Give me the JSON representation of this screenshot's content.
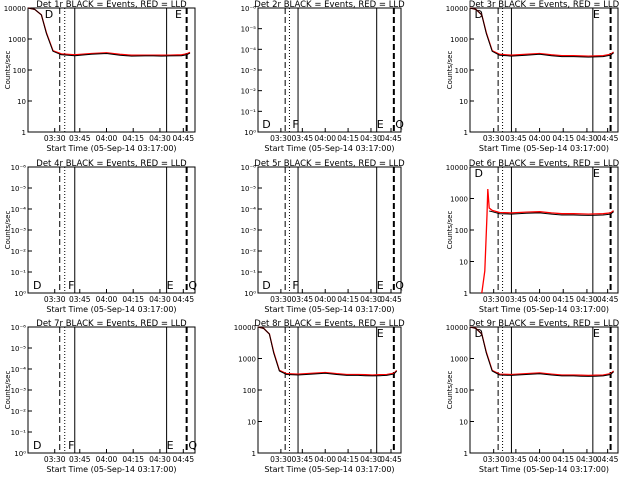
{
  "colors": {
    "events": "#000000",
    "lld": "#ff0000",
    "background": "#ffffff"
  },
  "chart_data": [
    {
      "type": "line",
      "title": "Det 1r BLACK = Events, RED = LLD",
      "xlabel": "Start Time (05-Sep-14 03:17:00)",
      "ylabel": "Counts/sec",
      "xticks": [
        "03:30",
        "03:45",
        "04:00",
        "04:15",
        "04:30",
        "04:45"
      ],
      "yscale": "log",
      "ylim": [
        1,
        10000
      ],
      "yticks": [
        "1",
        "10",
        "100",
        "1000",
        "10000"
      ],
      "markers": [
        {
          "x": 0.1,
          "label": "D"
        },
        {
          "x": 0.88,
          "label": "E"
        }
      ],
      "series": [
        {
          "name": "Events",
          "points": [
            [
              0,
              10000
            ],
            [
              0.04,
              9000
            ],
            [
              0.08,
              6000
            ],
            [
              0.11,
              1500
            ],
            [
              0.15,
              400
            ],
            [
              0.2,
              310
            ],
            [
              0.28,
              290
            ],
            [
              0.38,
              320
            ],
            [
              0.47,
              340
            ],
            [
              0.55,
              300
            ],
            [
              0.62,
              280
            ],
            [
              0.7,
              285
            ],
            [
              0.75,
              285
            ],
            [
              0.8,
              280
            ],
            [
              0.85,
              285
            ],
            [
              0.92,
              290
            ],
            [
              0.95,
              310
            ],
            [
              0.97,
              350
            ]
          ]
        },
        {
          "name": "LLD",
          "points": [
            [
              0,
              10000
            ],
            [
              0.04,
              9000
            ],
            [
              0.08,
              6000
            ],
            [
              0.11,
              1600
            ],
            [
              0.15,
              420
            ],
            [
              0.2,
              330
            ],
            [
              0.28,
              310
            ],
            [
              0.38,
              340
            ],
            [
              0.47,
              360
            ],
            [
              0.55,
              320
            ],
            [
              0.62,
              300
            ],
            [
              0.7,
              300
            ],
            [
              0.75,
              300
            ],
            [
              0.8,
              300
            ],
            [
              0.85,
              300
            ],
            [
              0.92,
              310
            ],
            [
              0.95,
              330
            ],
            [
              0.97,
              370
            ]
          ]
        }
      ]
    },
    {
      "type": "line",
      "title": "Det 2r BLACK = Events, RED = LLD",
      "xlabel": "Start Time (05-Sep-14 03:17:00)",
      "ylabel": "",
      "xticks": [
        "03:30",
        "03:45",
        "04:00",
        "04:15",
        "04:30",
        "04:45"
      ],
      "yscale": "log",
      "ylim": [
        1,
        1e-06
      ],
      "yticks": [
        "10⁰",
        "10⁻¹",
        "10⁻²",
        "10⁻³",
        "10⁻⁴",
        "10⁻⁵",
        "10⁻⁶"
      ],
      "markers": [
        {
          "x": 0.03,
          "label": "D"
        },
        {
          "x": 0.24,
          "label": "F"
        },
        {
          "x": 0.83,
          "label": "E"
        },
        {
          "x": 0.96,
          "label": "Q"
        }
      ],
      "series": []
    },
    {
      "type": "line",
      "title": "Det 3r BLACK = Events, RED = LLD",
      "xlabel": "Start Time (05-Sep-14 03:17:00)",
      "ylabel": "Counts/sec",
      "xticks": [
        "03:30",
        "03:45",
        "04:00",
        "04:15",
        "04:30",
        "04:45"
      ],
      "yscale": "log",
      "ylim": [
        1,
        10000
      ],
      "yticks": [
        "1",
        "10",
        "100",
        "1000",
        "10000"
      ],
      "markers": [
        {
          "x": 0.03,
          "label": "D"
        },
        {
          "x": 0.83,
          "label": "E"
        }
      ],
      "series": [
        {
          "name": "Events",
          "points": [
            [
              0,
              10000
            ],
            [
              0.04,
              9000
            ],
            [
              0.08,
              6000
            ],
            [
              0.11,
              1500
            ],
            [
              0.15,
              400
            ],
            [
              0.2,
              300
            ],
            [
              0.28,
              280
            ],
            [
              0.38,
              300
            ],
            [
              0.47,
              320
            ],
            [
              0.55,
              290
            ],
            [
              0.62,
              270
            ],
            [
              0.7,
              270
            ],
            [
              0.75,
              265
            ],
            [
              0.8,
              260
            ],
            [
              0.85,
              265
            ],
            [
              0.9,
              270
            ],
            [
              0.95,
              300
            ],
            [
              0.97,
              360
            ]
          ]
        },
        {
          "name": "LLD",
          "points": [
            [
              0,
              10000
            ],
            [
              0.04,
              9000
            ],
            [
              0.08,
              6000
            ],
            [
              0.11,
              1600
            ],
            [
              0.15,
              420
            ],
            [
              0.2,
              320
            ],
            [
              0.28,
              300
            ],
            [
              0.38,
              320
            ],
            [
              0.47,
              340
            ],
            [
              0.55,
              310
            ],
            [
              0.62,
              290
            ],
            [
              0.7,
              290
            ],
            [
              0.75,
              285
            ],
            [
              0.8,
              280
            ],
            [
              0.85,
              285
            ],
            [
              0.9,
              290
            ],
            [
              0.95,
              320
            ],
            [
              0.97,
              380
            ]
          ]
        }
      ]
    },
    {
      "type": "line",
      "title": "Det 4r BLACK = Events, RED = LLD",
      "xlabel": "Start Time (05-Sep-14 03:17:00)",
      "ylabel": "Counts/sec",
      "xticks": [
        "03:30",
        "03:45",
        "04:00",
        "04:15",
        "04:30",
        "04:45"
      ],
      "yscale": "log",
      "ylim": [
        1,
        1e-06
      ],
      "yticks": [
        "10⁰",
        "10⁻¹",
        "10⁻²",
        "10⁻³",
        "10⁻⁴",
        "10⁻⁵",
        "10⁻⁶"
      ],
      "markers": [
        {
          "x": 0.03,
          "label": "D"
        },
        {
          "x": 0.24,
          "label": "F"
        },
        {
          "x": 0.83,
          "label": "E"
        },
        {
          "x": 0.96,
          "label": "Q"
        }
      ],
      "series": []
    },
    {
      "type": "line",
      "title": "Det 5r BLACK = Events, RED = LLD",
      "xlabel": "Start Time (05-Sep-14 03:17:00)",
      "ylabel": "",
      "xticks": [
        "03:30",
        "03:45",
        "04:00",
        "04:15",
        "04:30",
        "04:45"
      ],
      "yscale": "log",
      "ylim": [
        1,
        1e-06
      ],
      "yticks": [
        "10⁰",
        "10⁻¹",
        "10⁻²",
        "10⁻³",
        "10⁻⁴",
        "10⁻⁵",
        "10⁻⁶"
      ],
      "markers": [
        {
          "x": 0.03,
          "label": "D"
        },
        {
          "x": 0.24,
          "label": "F"
        },
        {
          "x": 0.83,
          "label": "E"
        },
        {
          "x": 0.96,
          "label": "Q"
        }
      ],
      "series": []
    },
    {
      "type": "line",
      "title": "Det 6r BLACK = Events, RED = LLD",
      "xlabel": "Start Time (05-Sep-14 03:17:00)",
      "ylabel": "Counts/sec",
      "xticks": [
        "03:30",
        "03:45",
        "04:00",
        "04:15",
        "04:30",
        "04:45"
      ],
      "yscale": "log",
      "ylim": [
        1,
        10000
      ],
      "yticks": [
        "1",
        "10",
        "100",
        "1000",
        "10000"
      ],
      "markers": [
        {
          "x": 0.03,
          "label": "D"
        },
        {
          "x": 0.83,
          "label": "E"
        }
      ],
      "series": [
        {
          "name": "Events",
          "points": [
            [
              0.13,
              400
            ],
            [
              0.15,
              380
            ],
            [
              0.2,
              330
            ],
            [
              0.28,
              320
            ],
            [
              0.38,
              340
            ],
            [
              0.47,
              350
            ],
            [
              0.55,
              320
            ],
            [
              0.62,
              300
            ],
            [
              0.7,
              300
            ],
            [
              0.75,
              295
            ],
            [
              0.8,
              290
            ],
            [
              0.85,
              295
            ],
            [
              0.9,
              300
            ],
            [
              0.95,
              320
            ],
            [
              0.97,
              380
            ]
          ]
        },
        {
          "name": "LLD",
          "points": [
            [
              0.08,
              1
            ],
            [
              0.1,
              5
            ],
            [
              0.115,
              300
            ],
            [
              0.12,
              2000
            ],
            [
              0.13,
              500
            ],
            [
              0.15,
              420
            ],
            [
              0.2,
              360
            ],
            [
              0.28,
              350
            ],
            [
              0.38,
              370
            ],
            [
              0.47,
              380
            ],
            [
              0.55,
              350
            ],
            [
              0.62,
              330
            ],
            [
              0.7,
              330
            ],
            [
              0.75,
              325
            ],
            [
              0.8,
              320
            ],
            [
              0.85,
              325
            ],
            [
              0.9,
              330
            ],
            [
              0.95,
              350
            ],
            [
              0.97,
              410
            ]
          ]
        }
      ]
    },
    {
      "type": "line",
      "title": "Det 7r BLACK = Events, RED = LLD",
      "xlabel": "Start Time (05-Sep-14 03:17:00)",
      "ylabel": "Counts/sec",
      "xticks": [
        "03:30",
        "03:45",
        "04:00",
        "04:15",
        "04:30",
        "04:45"
      ],
      "yscale": "log",
      "ylim": [
        1,
        1e-06
      ],
      "yticks": [
        "10⁰",
        "10⁻¹",
        "10⁻²",
        "10⁻³",
        "10⁻⁴",
        "10⁻⁵",
        "10⁻⁶"
      ],
      "markers": [
        {
          "x": 0.03,
          "label": "D"
        },
        {
          "x": 0.24,
          "label": "F"
        },
        {
          "x": 0.83,
          "label": "E"
        },
        {
          "x": 0.96,
          "label": "Q"
        }
      ],
      "series": []
    },
    {
      "type": "line",
      "title": "Det 8r BLACK = Events, RED = LLD",
      "xlabel": "Start Time (05-Sep-14 03:17:00)",
      "ylabel": "",
      "xticks": [
        "03:30",
        "03:45",
        "04:00",
        "04:15",
        "04:30",
        "04:45"
      ],
      "yscale": "log",
      "ylim": [
        1,
        10000
      ],
      "yticks": [
        "1",
        "10",
        "100",
        "1000",
        "10000"
      ],
      "markers": [
        {
          "x": 0.83,
          "label": "E"
        }
      ],
      "series": [
        {
          "name": "Events",
          "points": [
            [
              0,
              10000
            ],
            [
              0.04,
              9000
            ],
            [
              0.08,
              6000
            ],
            [
              0.11,
              1500
            ],
            [
              0.15,
              400
            ],
            [
              0.2,
              310
            ],
            [
              0.28,
              300
            ],
            [
              0.38,
              320
            ],
            [
              0.47,
              340
            ],
            [
              0.55,
              310
            ],
            [
              0.62,
              290
            ],
            [
              0.7,
              290
            ],
            [
              0.75,
              285
            ],
            [
              0.8,
              280
            ],
            [
              0.85,
              285
            ],
            [
              0.9,
              290
            ],
            [
              0.95,
              320
            ],
            [
              0.97,
              400
            ]
          ]
        },
        {
          "name": "LLD",
          "points": [
            [
              0,
              10000
            ],
            [
              0.04,
              9000
            ],
            [
              0.08,
              6000
            ],
            [
              0.11,
              1600
            ],
            [
              0.15,
              420
            ],
            [
              0.2,
              330
            ],
            [
              0.28,
              320
            ],
            [
              0.38,
              340
            ],
            [
              0.47,
              360
            ],
            [
              0.55,
              330
            ],
            [
              0.62,
              310
            ],
            [
              0.7,
              310
            ],
            [
              0.75,
              305
            ],
            [
              0.8,
              300
            ],
            [
              0.85,
              305
            ],
            [
              0.9,
              310
            ],
            [
              0.95,
              340
            ],
            [
              0.97,
              420
            ]
          ]
        }
      ]
    },
    {
      "type": "line",
      "title": "Det 9r BLACK = Events, RED = LLD",
      "xlabel": "Start Time (05-Sep-14 03:17:00)",
      "ylabel": "Counts/sec",
      "xticks": [
        "03:30",
        "03:45",
        "04:00",
        "04:15",
        "04:30",
        "04:45"
      ],
      "yscale": "log",
      "ylim": [
        1,
        10000
      ],
      "yticks": [
        "1",
        "10",
        "100",
        "1000",
        "10000"
      ],
      "markers": [
        {
          "x": 0.03,
          "label": "D"
        },
        {
          "x": 0.83,
          "label": "E"
        }
      ],
      "series": [
        {
          "name": "Events",
          "points": [
            [
              0,
              10000
            ],
            [
              0.04,
              9000
            ],
            [
              0.08,
              6000
            ],
            [
              0.11,
              1500
            ],
            [
              0.15,
              400
            ],
            [
              0.2,
              300
            ],
            [
              0.28,
              290
            ],
            [
              0.38,
              310
            ],
            [
              0.47,
              330
            ],
            [
              0.55,
              300
            ],
            [
              0.62,
              280
            ],
            [
              0.7,
              280
            ],
            [
              0.75,
              275
            ],
            [
              0.8,
              270
            ],
            [
              0.85,
              275
            ],
            [
              0.9,
              280
            ],
            [
              0.95,
              310
            ],
            [
              0.97,
              380
            ]
          ]
        },
        {
          "name": "LLD",
          "points": [
            [
              0,
              10000
            ],
            [
              0.04,
              9000
            ],
            [
              0.08,
              6000
            ],
            [
              0.11,
              1600
            ],
            [
              0.15,
              420
            ],
            [
              0.2,
              320
            ],
            [
              0.28,
              310
            ],
            [
              0.38,
              330
            ],
            [
              0.47,
              350
            ],
            [
              0.55,
              320
            ],
            [
              0.62,
              300
            ],
            [
              0.7,
              300
            ],
            [
              0.75,
              295
            ],
            [
              0.8,
              290
            ],
            [
              0.85,
              295
            ],
            [
              0.9,
              300
            ],
            [
              0.95,
              330
            ],
            [
              0.97,
              400
            ]
          ]
        }
      ]
    }
  ]
}
